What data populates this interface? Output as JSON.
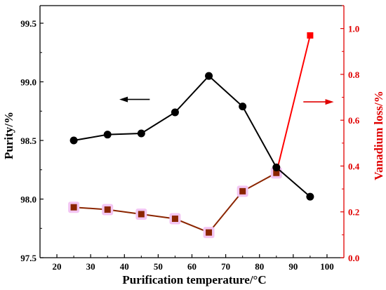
{
  "chart_data": {
    "type": "line",
    "xlabel": "Purification temperature/°C",
    "ylabel_left": "Purity/%",
    "ylabel_right": "Vanadium loss/%",
    "x_ticks": [
      "20",
      "30",
      "40",
      "50",
      "60",
      "70",
      "80",
      "90",
      "100"
    ],
    "y_left_ticks": [
      "97.5",
      "98.0",
      "98.5",
      "99.0",
      "99.5"
    ],
    "y_right_ticks": [
      "0.0",
      "0.2",
      "0.4",
      "0.6",
      "0.8",
      "1.0"
    ],
    "xlim": [
      15,
      105
    ],
    "ylim_left": [
      97.5,
      99.65
    ],
    "ylim_right": [
      0.0,
      1.1
    ],
    "series": [
      {
        "axis": "left",
        "color": "#000000",
        "marker": "circle",
        "x": [
          25,
          35,
          45,
          55,
          65,
          75,
          85,
          95
        ],
        "values": [
          98.5,
          98.55,
          98.56,
          98.74,
          99.05,
          98.79,
          98.27,
          98.02
        ]
      },
      {
        "axis": "right",
        "color": "#8b2500",
        "color_last_segment": "#ff0000",
        "marker": "square",
        "x": [
          25,
          35,
          45,
          55,
          65,
          75,
          85,
          95
        ],
        "values": [
          0.22,
          0.21,
          0.19,
          0.17,
          0.11,
          0.29,
          0.37,
          0.97
        ]
      }
    ],
    "colors": {
      "left_axis": "#000000",
      "right_axis": "#e00000",
      "marker_halo": "#f3c6f3"
    }
  }
}
